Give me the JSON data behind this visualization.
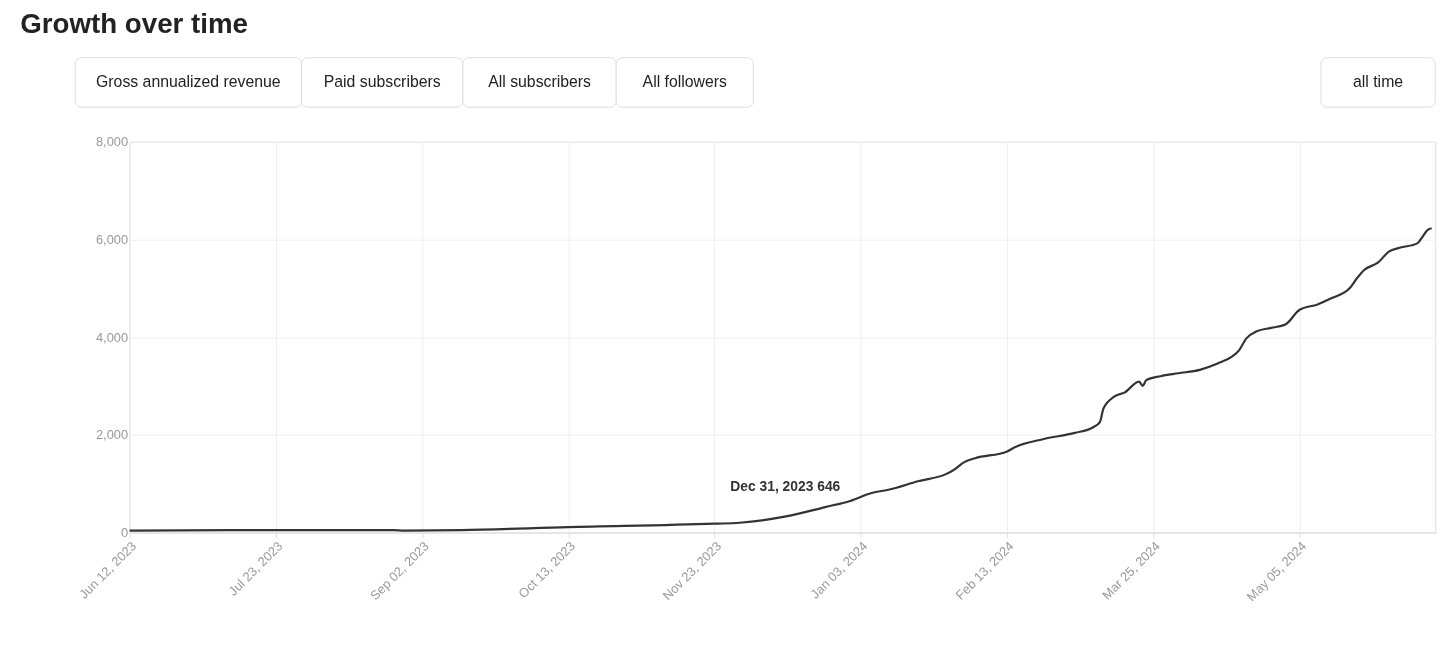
{
  "chart_data": {
    "type": "line",
    "title": "Growth over time",
    "annotations": [
      "Gross annualized revenue",
      "Paid subscribers",
      "All subscribers",
      "All followers",
      "all time",
      {
        "text": "Dec 31, 2023 646",
        "x": "2023-12-31",
        "y": 646
      }
    ],
    "series": [
      {
        "color": "#333333",
        "x": [
          "2023-06-12",
          "2023-07-23",
          "2023-08-25",
          "2023-08-28",
          "2023-09-13",
          "2023-10-13",
          "2023-11-23",
          "2023-11-30",
          "2023-12-13",
          "2023-12-24",
          "2023-12-31",
          "2024-01-06",
          "2024-01-11",
          "2024-01-19",
          "2024-01-27",
          "2024-01-29",
          "2024-02-01",
          "2024-02-04",
          "2024-02-13",
          "2024-02-15",
          "2024-02-23",
          "2024-03-03",
          "2024-03-08",
          "2024-03-10",
          "2024-03-11",
          "2024-03-14",
          "2024-03-17",
          "2024-03-21",
          "2024-03-22",
          "2024-03-23",
          "2024-03-27",
          "2024-04-01",
          "2024-04-07",
          "2024-04-12",
          "2024-04-16",
          "2024-04-18",
          "2024-04-20",
          "2024-04-23",
          "2024-04-27",
          "2024-05-01",
          "2024-05-05",
          "2024-05-10",
          "2024-05-14",
          "2024-05-19",
          "2024-05-21",
          "2024-05-23",
          "2024-05-27",
          "2024-05-30",
          "2024-06-02",
          "2024-06-07",
          "2024-06-08",
          "2024-06-10",
          "2024-06-11"
        ],
        "values": [
          40,
          50,
          50,
          40,
          50,
          110,
          180,
          200,
          330,
          520,
          646,
          810,
          880,
          1050,
          1200,
          1280,
          1440,
          1520,
          1660,
          1740,
          1910,
          2040,
          2150,
          2260,
          2540,
          2780,
          2870,
          3090,
          3000,
          3120,
          3200,
          3260,
          3330,
          3460,
          3600,
          3730,
          3970,
          4120,
          4190,
          4260,
          4560,
          4670,
          4800,
          5000,
          5200,
          5370,
          5530,
          5750,
          5830,
          5920,
          6010,
          6200,
          6230
        ]
      }
    ],
    "xlim": [
      "2023-06-12",
      "2024-06-12"
    ],
    "xticks": [
      {
        "value": "2023-06-12",
        "label": "Jun 12, 2023"
      },
      {
        "value": "2023-07-23",
        "label": "Jul 23, 2023"
      },
      {
        "value": "2023-09-02",
        "label": "Sep 02, 2023"
      },
      {
        "value": "2023-10-13",
        "label": "Oct 13, 2023"
      },
      {
        "value": "2023-11-23",
        "label": "Nov 23, 2023"
      },
      {
        "value": "2024-01-03",
        "label": "Jan 03, 2024"
      },
      {
        "value": "2024-02-13",
        "label": "Feb 13, 2024"
      },
      {
        "value": "2024-03-25",
        "label": "Mar 25, 2024"
      },
      {
        "value": "2024-05-05",
        "label": "May 05, 2024"
      }
    ],
    "ylim": [
      0,
      8000
    ],
    "yticks": [
      {
        "value": 0,
        "label": "0"
      },
      {
        "value": 2000,
        "label": "2,000"
      },
      {
        "value": 4000,
        "label": "4,000"
      },
      {
        "value": 6000,
        "label": "6,000"
      },
      {
        "value": 8000,
        "label": "8,000"
      }
    ],
    "grid": true
  }
}
